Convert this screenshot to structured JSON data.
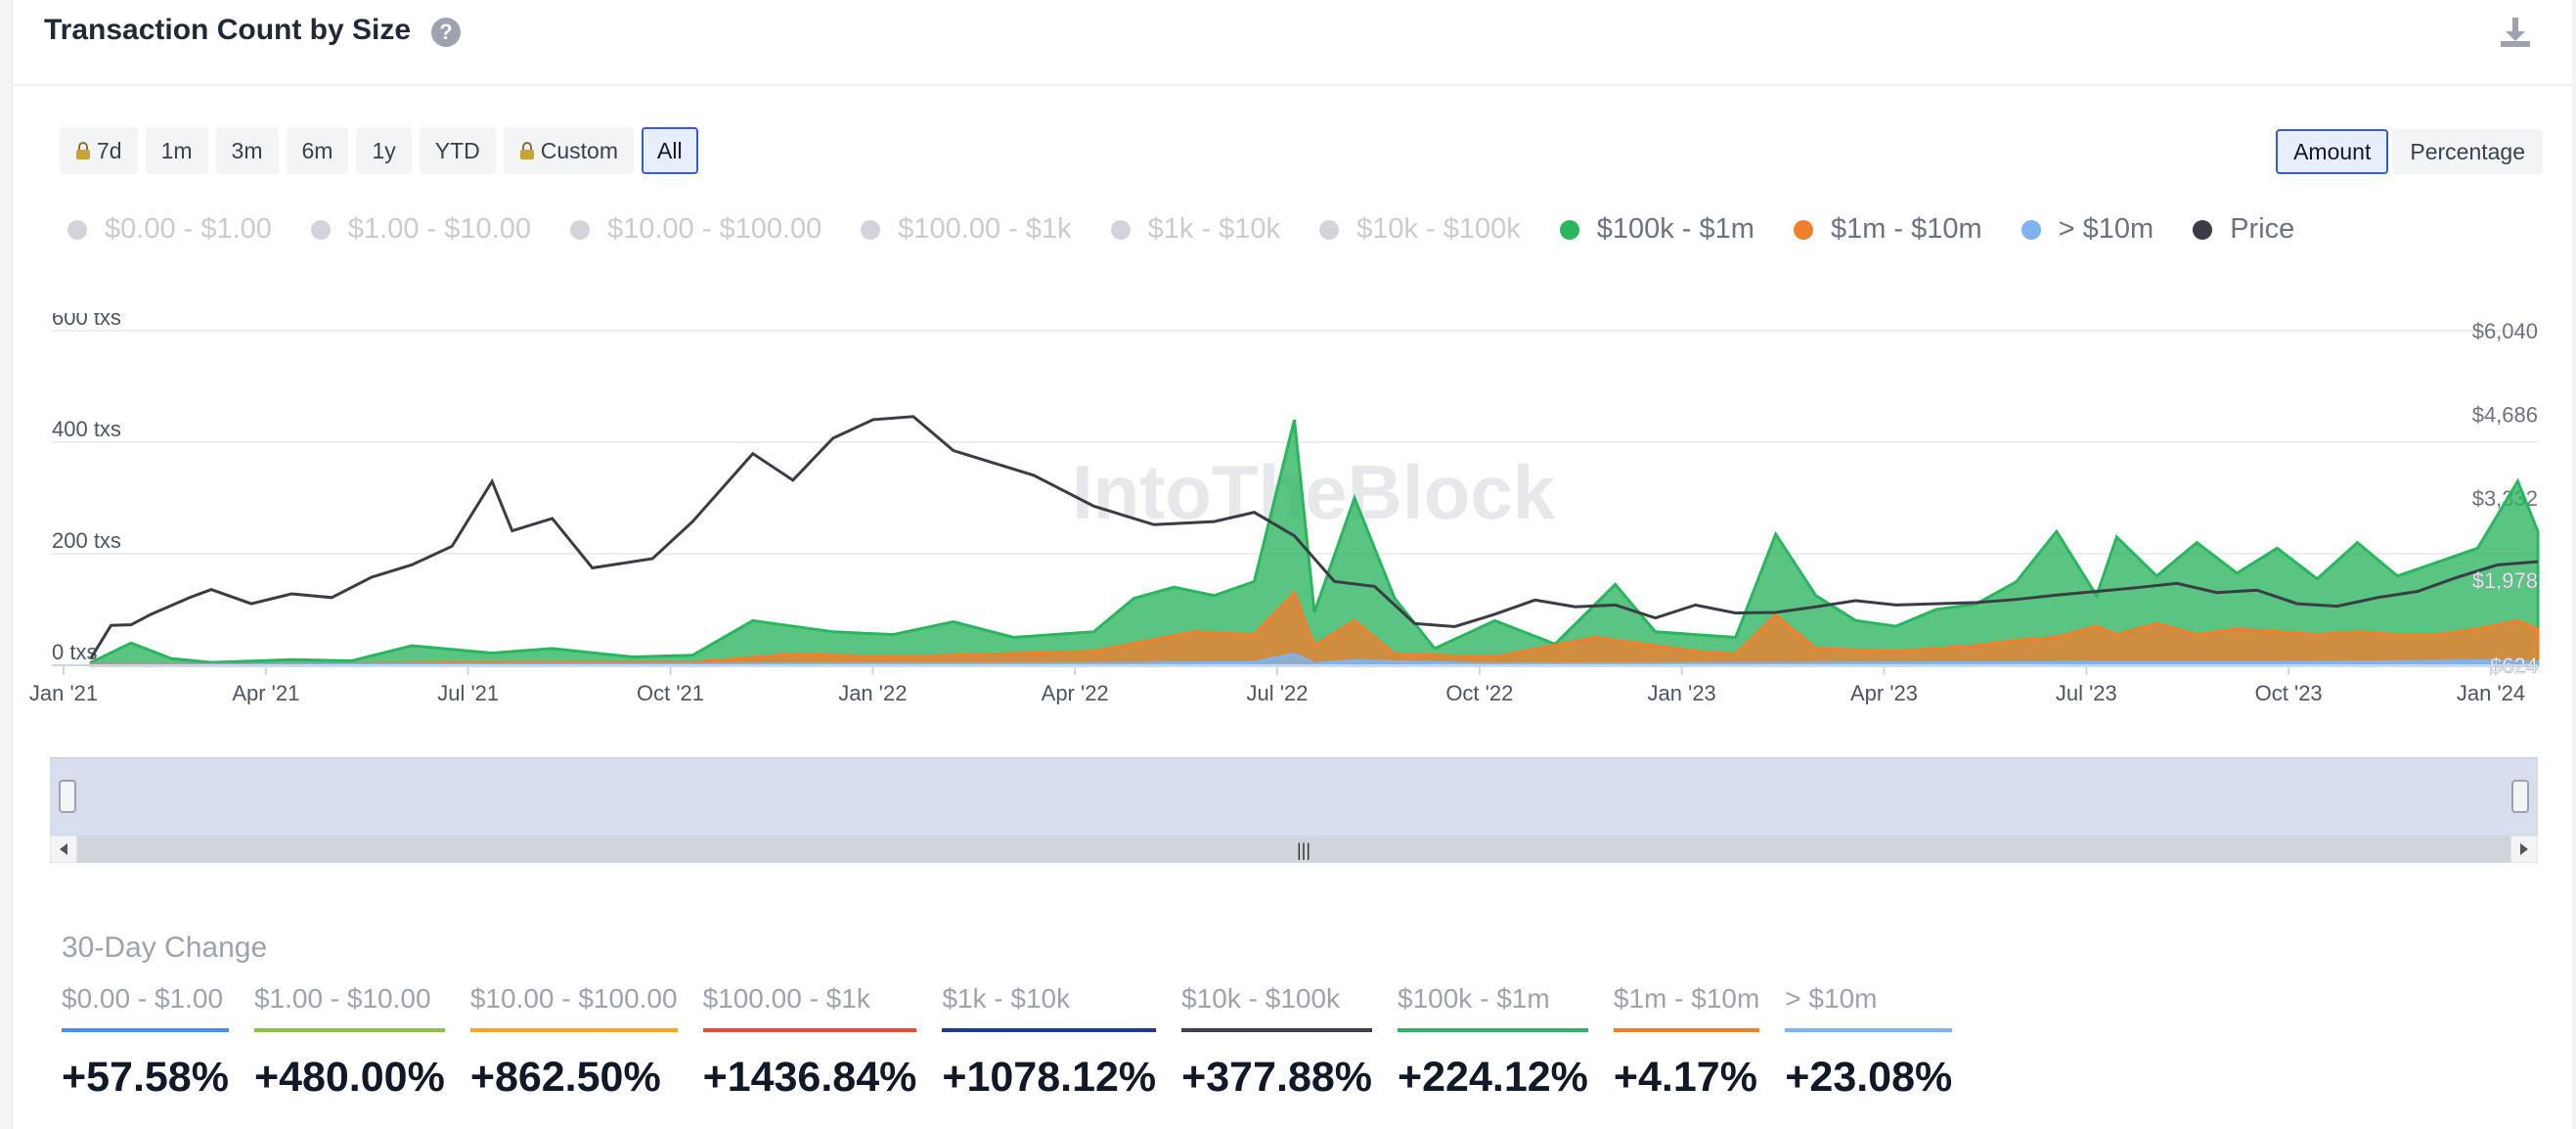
{
  "header": {
    "title": "Transaction Count by Size"
  },
  "range_buttons": [
    {
      "label": "7d",
      "locked": true,
      "active": false
    },
    {
      "label": "1m",
      "locked": false,
      "active": false
    },
    {
      "label": "3m",
      "locked": false,
      "active": false
    },
    {
      "label": "6m",
      "locked": false,
      "active": false
    },
    {
      "label": "1y",
      "locked": false,
      "active": false
    },
    {
      "label": "YTD",
      "locked": false,
      "active": false
    },
    {
      "label": "Custom",
      "locked": true,
      "active": false
    },
    {
      "label": "All",
      "locked": false,
      "active": true
    }
  ],
  "mode_buttons": [
    {
      "label": "Amount",
      "active": true
    },
    {
      "label": "Percentage",
      "active": false
    }
  ],
  "legend": [
    {
      "label": "$0.00 - $1.00",
      "color": "#4a90e2",
      "enabled": false
    },
    {
      "label": "$1.00 - $10.00",
      "color": "#8bc34a",
      "enabled": false
    },
    {
      "label": "$10.00 - $100.00",
      "color": "#f5a623",
      "enabled": false
    },
    {
      "label": "$100.00 - $1k",
      "color": "#e74c3c",
      "enabled": false
    },
    {
      "label": "$1k - $10k",
      "color": "#1e3a8a",
      "enabled": false
    },
    {
      "label": "$10k - $100k",
      "color": "#374151",
      "enabled": false
    },
    {
      "label": "$100k - $1m",
      "color": "#2bb55f",
      "enabled": true
    },
    {
      "label": "$1m - $10m",
      "color": "#f07f2d",
      "enabled": true
    },
    {
      "label": "> $10m",
      "color": "#7fb3f0",
      "enabled": true
    },
    {
      "label": "Price",
      "color": "#3a3d45",
      "enabled": true
    }
  ],
  "watermark": "IntoTheBlock",
  "chart_data": {
    "type": "area",
    "x_labels": [
      "Jan '21",
      "Apr '21",
      "Jul '21",
      "Oct '21",
      "Jan '22",
      "Apr '22",
      "Jul '22",
      "Oct '22",
      "Jan '23",
      "Apr '23",
      "Jul '23",
      "Oct '23",
      "Jan '24"
    ],
    "left_axis": {
      "ticks": [
        "600 txs",
        "400 txs",
        "200 txs",
        "0 txs"
      ],
      "values": [
        600,
        400,
        200,
        0
      ],
      "range": [
        0,
        600
      ]
    },
    "right_axis": {
      "ticks": [
        "$6,040",
        "$4,686",
        "$3,332"
      ],
      "values": [
        6040,
        4686,
        3332
      ],
      "range": [
        624,
        6040
      ]
    },
    "current_labels": {
      "price": "$1,978",
      "low": "$624"
    },
    "x_range": [
      0,
      12.2
    ],
    "series": [
      {
        "name": "$100k - $1m",
        "color": "#2bb55f",
        "points": [
          [
            0,
            5
          ],
          [
            0.2,
            40
          ],
          [
            0.4,
            12
          ],
          [
            0.6,
            5
          ],
          [
            1,
            10
          ],
          [
            1.3,
            8
          ],
          [
            1.6,
            35
          ],
          [
            2,
            22
          ],
          [
            2.3,
            30
          ],
          [
            2.7,
            15
          ],
          [
            3,
            18
          ],
          [
            3.3,
            80
          ],
          [
            3.7,
            60
          ],
          [
            4,
            55
          ],
          [
            4.3,
            78
          ],
          [
            4.6,
            50
          ],
          [
            5,
            60
          ],
          [
            5.2,
            120
          ],
          [
            5.4,
            140
          ],
          [
            5.6,
            125
          ],
          [
            5.8,
            150
          ],
          [
            6,
            440
          ],
          [
            6.1,
            95
          ],
          [
            6.3,
            300
          ],
          [
            6.5,
            120
          ],
          [
            6.7,
            30
          ],
          [
            7,
            80
          ],
          [
            7.3,
            38
          ],
          [
            7.6,
            145
          ],
          [
            7.8,
            60
          ],
          [
            8,
            55
          ],
          [
            8.2,
            50
          ],
          [
            8.4,
            235
          ],
          [
            8.6,
            125
          ],
          [
            8.8,
            80
          ],
          [
            9,
            70
          ],
          [
            9.2,
            100
          ],
          [
            9.4,
            110
          ],
          [
            9.6,
            150
          ],
          [
            9.8,
            240
          ],
          [
            10,
            125
          ],
          [
            10.1,
            230
          ],
          [
            10.3,
            160
          ],
          [
            10.5,
            220
          ],
          [
            10.7,
            165
          ],
          [
            10.9,
            210
          ],
          [
            11.1,
            155
          ],
          [
            11.3,
            220
          ],
          [
            11.5,
            160
          ],
          [
            11.7,
            185
          ],
          [
            11.9,
            210
          ],
          [
            12.1,
            330
          ],
          [
            12.2,
            240
          ]
        ]
      },
      {
        "name": "$1m - $10m",
        "color": "#f07f2d",
        "points": [
          [
            0,
            2
          ],
          [
            1,
            2
          ],
          [
            2,
            5
          ],
          [
            3,
            5
          ],
          [
            3.5,
            20
          ],
          [
            4,
            15
          ],
          [
            4.5,
            20
          ],
          [
            5,
            25
          ],
          [
            5.5,
            60
          ],
          [
            5.8,
            55
          ],
          [
            6,
            130
          ],
          [
            6.1,
            35
          ],
          [
            6.3,
            80
          ],
          [
            6.5,
            20
          ],
          [
            7,
            15
          ],
          [
            7.5,
            50
          ],
          [
            8,
            25
          ],
          [
            8.2,
            20
          ],
          [
            8.4,
            90
          ],
          [
            8.6,
            30
          ],
          [
            9,
            25
          ],
          [
            9.4,
            35
          ],
          [
            9.6,
            45
          ],
          [
            9.8,
            50
          ],
          [
            10,
            70
          ],
          [
            10.1,
            55
          ],
          [
            10.3,
            75
          ],
          [
            10.5,
            55
          ],
          [
            10.7,
            65
          ],
          [
            10.9,
            60
          ],
          [
            11.1,
            55
          ],
          [
            11.3,
            60
          ],
          [
            11.5,
            55
          ],
          [
            11.7,
            55
          ],
          [
            11.9,
            65
          ],
          [
            12.1,
            80
          ],
          [
            12.2,
            65
          ]
        ]
      },
      {
        "name": "> $10m",
        "color": "#7fb3f0",
        "points": [
          [
            0,
            0
          ],
          [
            5,
            3
          ],
          [
            5.8,
            5
          ],
          [
            6,
            20
          ],
          [
            6.1,
            3
          ],
          [
            6.3,
            8
          ],
          [
            7,
            2
          ],
          [
            8,
            3
          ],
          [
            9,
            4
          ],
          [
            10,
            5
          ],
          [
            11,
            5
          ],
          [
            12,
            8
          ],
          [
            12.2,
            6
          ]
        ]
      },
      {
        "name": "Price",
        "color": "#3a3d45",
        "points": [
          [
            0,
            740
          ],
          [
            0.1,
            1270
          ],
          [
            0.2,
            1280
          ],
          [
            0.3,
            1450
          ],
          [
            0.5,
            1730
          ],
          [
            0.6,
            1850
          ],
          [
            0.8,
            1620
          ],
          [
            1.0,
            1780
          ],
          [
            1.2,
            1720
          ],
          [
            1.4,
            2050
          ],
          [
            1.6,
            2250
          ],
          [
            1.8,
            2550
          ],
          [
            2.0,
            3600
          ],
          [
            2.1,
            2800
          ],
          [
            2.3,
            3000
          ],
          [
            2.5,
            2200
          ],
          [
            2.8,
            2350
          ],
          [
            3.0,
            2950
          ],
          [
            3.3,
            4050
          ],
          [
            3.5,
            3620
          ],
          [
            3.7,
            4300
          ],
          [
            3.9,
            4600
          ],
          [
            4.1,
            4650
          ],
          [
            4.3,
            4100
          ],
          [
            4.5,
            3900
          ],
          [
            4.7,
            3700
          ],
          [
            5.0,
            3200
          ],
          [
            5.3,
            2900
          ],
          [
            5.6,
            2950
          ],
          [
            5.8,
            3100
          ],
          [
            6.0,
            2720
          ],
          [
            6.2,
            1980
          ],
          [
            6.4,
            1900
          ],
          [
            6.6,
            1300
          ],
          [
            6.8,
            1250
          ],
          [
            7.0,
            1450
          ],
          [
            7.2,
            1680
          ],
          [
            7.4,
            1570
          ],
          [
            7.6,
            1600
          ],
          [
            7.8,
            1390
          ],
          [
            8.0,
            1600
          ],
          [
            8.2,
            1470
          ],
          [
            8.4,
            1480
          ],
          [
            8.6,
            1570
          ],
          [
            8.8,
            1670
          ],
          [
            9.0,
            1600
          ],
          [
            9.2,
            1620
          ],
          [
            9.4,
            1640
          ],
          [
            9.6,
            1690
          ],
          [
            9.8,
            1760
          ],
          [
            10.0,
            1820
          ],
          [
            10.2,
            1880
          ],
          [
            10.4,
            1950
          ],
          [
            10.6,
            1800
          ],
          [
            10.8,
            1840
          ],
          [
            11.0,
            1620
          ],
          [
            11.2,
            1580
          ],
          [
            11.4,
            1720
          ],
          [
            11.6,
            1820
          ],
          [
            11.8,
            2050
          ],
          [
            12.0,
            2250
          ],
          [
            12.2,
            2300
          ]
        ]
      }
    ]
  },
  "navigator": {
    "handle_glyph": "|||"
  },
  "stats": {
    "title": "30-Day Change",
    "items": [
      {
        "label": "$0.00 - $1.00",
        "value": "+57.58%",
        "color": "#4a90e2"
      },
      {
        "label": "$1.00 - $10.00",
        "value": "+480.00%",
        "color": "#8bc34a"
      },
      {
        "label": "$10.00 - $100.00",
        "value": "+862.50%",
        "color": "#f5a623"
      },
      {
        "label": "$100.00 - $1k",
        "value": "+1436.84%",
        "color": "#e74c3c"
      },
      {
        "label": "$1k - $10k",
        "value": "+1078.12%",
        "color": "#1e3a8a"
      },
      {
        "label": "$10k - $100k",
        "value": "+377.88%",
        "color": "#374151"
      },
      {
        "label": "$100k - $1m",
        "value": "+224.12%",
        "color": "#2bb55f"
      },
      {
        "label": "$1m - $10m",
        "value": "+4.17%",
        "color": "#f07f2d"
      },
      {
        "label": "> $10m",
        "value": "+23.08%",
        "color": "#7fb3f0"
      }
    ]
  }
}
